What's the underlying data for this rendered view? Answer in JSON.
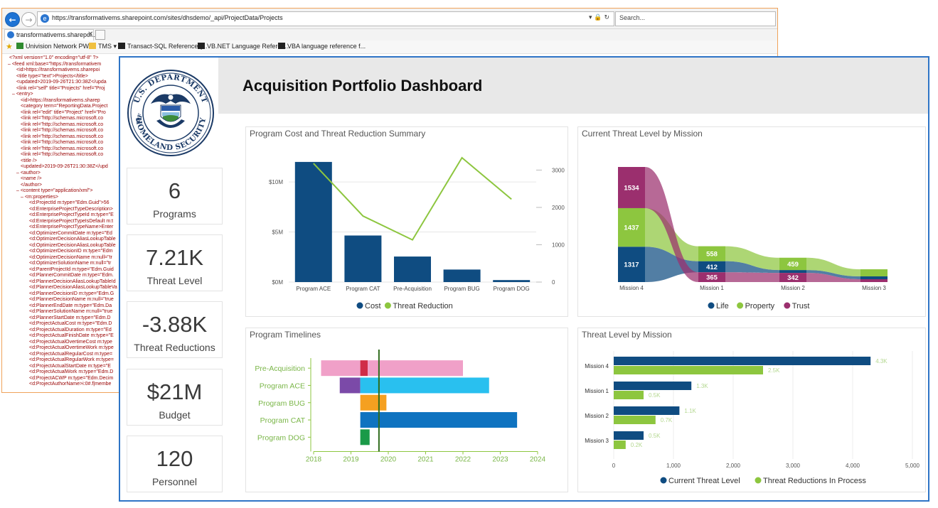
{
  "browser": {
    "url": "https://transformativems.sharepoint.com/sites/dhsdemo/_api/ProjectData/Projects",
    "address_controls": "▾ 🔒 ↻",
    "search_placeholder": "Search...",
    "tab_label": "transformativems.sharepoi...",
    "tab_close": "✕",
    "favorites": [
      {
        "label": "Univision Network PWA",
        "icon": "pwa-icon",
        "color": "#2f8a2f"
      },
      {
        "label": "TMS ▾",
        "icon": "folder-icon",
        "color": "#f0c040"
      },
      {
        "label": "Transact-SQL Reference (...",
        "icon": "microsoft-docs-icon",
        "color": "#222222"
      },
      {
        "label": "VB.NET Language Referen...",
        "icon": "microsoft-docs-icon",
        "color": "#222222"
      },
      {
        "label": "VBA language reference f...",
        "icon": "microsoft-docs-icon",
        "color": "#222222"
      }
    ],
    "xml_lines": [
      "<?xml version=\"1.0\" encoding=\"utf-8\" ?>",
      "– <feed xml:base=\"https://transformativem",
      "<id>https://transformativems.sharepoi",
      "<title type=\"text\">Projects</title>",
      "<updated>2019-09-26T21:30:38Z</upda",
      "<link rel=\"self\" title=\"Projects\" href=\"Proj",
      "– <entry>",
      "<id>https://transformativems.sharep",
      "<category term=\"ReportingData.Project",
      "<link rel=\"edit\" title=\"Project\" href=\"Pro",
      "<link rel=\"http://schemas.microsoft.co",
      "<link rel=\"http://schemas.microsoft.co",
      "<link rel=\"http://schemas.microsoft.co",
      "<link rel=\"http://schemas.microsoft.co",
      "<link rel=\"http://schemas.microsoft.co",
      "<link rel=\"http://schemas.microsoft.co",
      "<link rel=\"http://schemas.microsoft.co",
      "<title />",
      "<updated>2019-09-26T21:30:38Z</upd",
      "– <author>",
      "<name />",
      "</author>",
      "– <content type=\"application/xml\">",
      "– <m:properties>",
      "<d:ProjectId m:type=\"Edm.Guid\">56",
      "<d:EnterpriseProjectTypeDescription>",
      "<d:EnterpriseProjectTypeId m:type=\"E",
      "<d:EnterpriseProjectTypeIsDefault m:t",
      "<d:EnterpriseProjectTypeName>Enter",
      "<d:OptimizerCommitDate m:type=\"Ed",
      "<d:OptimizerDecisionAliasLookupTable",
      "<d:OptimizerDecisionAliasLookupTable",
      "<d:OptimizerDecisionID m:type=\"Edm",
      "<d:OptimizerDecisionName m:null=\"tr",
      "<d:OptimizerSolutionName m:null=\"tr",
      "<d:ParentProjectId m:type=\"Edm.Guid",
      "<d:PlannerCommitDate m:type=\"Edm.",
      "<d:PlannerDecisionAliasLookupTableId",
      "<d:PlannerDecisionAliasLookupTableVa",
      "<d:PlannerDecisionID m:type=\"Edm.G",
      "<d:PlannerDecisionName m:null=\"true",
      "<d:PlannerEndDate m:type=\"Edm.Da",
      "<d:PlannerSolutionName m:null=\"true",
      "<d:PlannerStartDate m:type=\"Edm.D",
      "<d:ProjectActualCost m:type=\"Edm.D",
      "<d:ProjectActualDuration m:type=\"Ed",
      "<d:ProjectActualFinishDate m:type=\"E",
      "<d:ProjectActualOvertimeCost m:type",
      "<d:ProjectActualOvertimeWork m:type",
      "<d:ProjectActualRegularCost m:type=",
      "<d:ProjectActualRegularWork m:type=",
      "<d:ProjectActualStartDate m:type=\"E",
      "<d:ProjectActualWork m:type=\"Edm.D",
      "<d:ProjectACWP m:type=\"Edm.Decim",
      "<d:ProjectAuthorName>i:0#.f|membe"
    ]
  },
  "dashboard": {
    "title": "Acquisition Portfolio Dashboard",
    "seal_text": {
      "top": "U.S. DEPARTMENT",
      "bottom": "HOMELAND SECURITY",
      "of": "OF"
    },
    "kpis": [
      {
        "value": "6",
        "label": "Programs"
      },
      {
        "value": "7.21K",
        "label": "Threat Level"
      },
      {
        "value": "-3.88K",
        "label": "Threat Reductions"
      },
      {
        "value": "$21M",
        "label": "Budget"
      },
      {
        "value": "120",
        "label": "Personnel"
      }
    ],
    "colors": {
      "navy": "#0f4c81",
      "green": "#8dc63f",
      "magenta": "#9b2f6e",
      "axis_text": "#555555",
      "timeline_label": "#7ab648"
    }
  },
  "chart_data": [
    {
      "type": "bar+line",
      "title": "Program Cost and Threat Reduction Summary",
      "categories": [
        "Program ACE",
        "Program CAT",
        "Pre-Acquisition",
        "Program BUG",
        "Program DOG"
      ],
      "series": [
        {
          "name": "Cost",
          "axis": "left",
          "kind": "bar",
          "color": "#0f4c81",
          "values": [
            12000000,
            4650000,
            2550000,
            1250000,
            200000
          ]
        },
        {
          "name": "Threat Reduction",
          "axis": "right",
          "kind": "line",
          "color": "#8dc63f",
          "values": [
            3180,
            1770,
            1130,
            3330,
            2220
          ]
        }
      ],
      "left_axis": {
        "ticks": [
          0,
          5000000,
          10000000
        ],
        "tick_labels": [
          "$0M",
          "$5M",
          "$10M"
        ],
        "max": 13200000
      },
      "right_axis": {
        "ticks": [
          0,
          1000,
          2000,
          3000
        ],
        "tick_labels": [
          "0",
          "1000",
          "2000",
          "3000"
        ],
        "max": 3540
      },
      "legend": [
        "Cost",
        "Threat Reduction"
      ]
    },
    {
      "type": "ribbon",
      "title": "Current Threat Level by Mission",
      "categories": [
        "Mission 4",
        "Mission 1",
        "Mission 2",
        "Mission 3"
      ],
      "series": [
        {
          "name": "Life",
          "color": "#0f4c81",
          "values": [
            1317,
            412,
            0,
            0
          ]
        },
        {
          "name": "Property",
          "color": "#8dc63f",
          "values": [
            1437,
            558,
            459,
            0
          ]
        },
        {
          "name": "Trust",
          "color": "#9b2f6e",
          "values": [
            1534,
            365,
            342,
            0
          ]
        }
      ],
      "labels": [
        {
          "category": "Mission 4",
          "series": "Life",
          "text": "1317"
        },
        {
          "category": "Mission 4",
          "series": "Property",
          "text": "1437"
        },
        {
          "category": "Mission 4",
          "series": "Trust",
          "text": "1534"
        },
        {
          "category": "Mission 1",
          "series": "Property",
          "text": "558"
        },
        {
          "category": "Mission 1",
          "series": "Life",
          "text": "412"
        },
        {
          "category": "Mission 1",
          "series": "Trust",
          "text": "365"
        },
        {
          "category": "Mission 2",
          "series": "Property",
          "text": "459"
        },
        {
          "category": "Mission 2",
          "series": "Trust",
          "text": "342"
        }
      ],
      "legend": [
        "Life",
        "Property",
        "Trust"
      ]
    },
    {
      "type": "gantt",
      "title": "Program Timelines",
      "x_ticks": [
        2018,
        2019,
        2020,
        2021,
        2022,
        2023,
        2024
      ],
      "x_range": [
        2018,
        2024
      ],
      "today": 2019.75,
      "rows": [
        {
          "label": "Pre-Acquisition",
          "bars": [
            {
              "start": 2018.2,
              "end": 2019.25,
              "color": "#f0a0c8"
            },
            {
              "start": 2019.25,
              "end": 2019.45,
              "color": "#d02c48"
            },
            {
              "start": 2019.45,
              "end": 2022.0,
              "color": "#f0a0c8"
            }
          ]
        },
        {
          "label": "Program ACE",
          "bars": [
            {
              "start": 2018.7,
              "end": 2019.25,
              "color": "#7b4aa8"
            },
            {
              "start": 2019.25,
              "end": 2022.7,
              "color": "#29c0ef"
            }
          ]
        },
        {
          "label": "Program BUG",
          "bars": [
            {
              "start": 2019.25,
              "end": 2019.95,
              "color": "#f5a020"
            }
          ]
        },
        {
          "label": "Program CAT",
          "bars": [
            {
              "start": 2019.25,
              "end": 2023.45,
              "color": "#0f73c0"
            }
          ]
        },
        {
          "label": "Program DOG",
          "bars": [
            {
              "start": 2019.25,
              "end": 2019.5,
              "color": "#1a9a48"
            }
          ]
        }
      ]
    },
    {
      "type": "bar",
      "orientation": "horizontal",
      "title": "Threat Level by Mission",
      "categories": [
        "Mission 4",
        "Mission 1",
        "Mission 2",
        "Mission 3"
      ],
      "series": [
        {
          "name": "Current Threat Level",
          "color": "#0f4c81",
          "values": [
            4300,
            1300,
            1100,
            500
          ],
          "labels": [
            "4.3K",
            "1.3K",
            "1.1K",
            "0.5K"
          ]
        },
        {
          "name": "Threat Reductions In Process",
          "color": "#8dc63f",
          "values": [
            2500,
            500,
            700,
            200
          ],
          "labels": [
            "2.5K",
            "0.5K",
            "0.7K",
            "0.2K"
          ]
        }
      ],
      "x_ticks": [
        0,
        1000,
        2000,
        3000,
        4000,
        5000
      ],
      "x_tick_labels": [
        "0",
        "1,000",
        "2,000",
        "3,000",
        "4,000",
        "5,000"
      ],
      "xlim": [
        0,
        5000
      ],
      "legend": [
        "Current Threat Level",
        "Threat Reductions In Process"
      ]
    }
  ]
}
